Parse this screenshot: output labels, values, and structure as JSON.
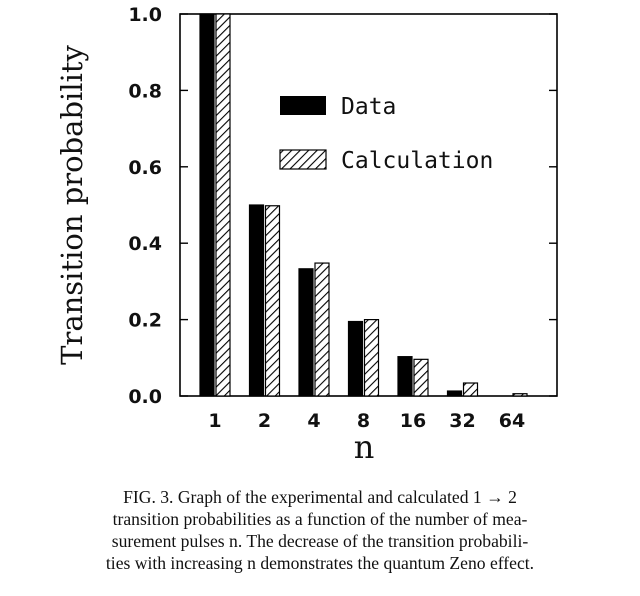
{
  "chart_data": {
    "type": "bar",
    "title": "",
    "xlabel": "n",
    "ylabel": "Transition probability",
    "categories": [
      "1",
      "2",
      "4",
      "8",
      "16",
      "32",
      "64"
    ],
    "series": [
      {
        "name": "Data",
        "values": [
          1.0,
          0.5,
          0.333,
          0.195,
          0.103,
          0.013,
          0.0
        ],
        "color": "#000000",
        "pattern": "solid"
      },
      {
        "name": "Calculation",
        "values": [
          1.0,
          0.498,
          0.348,
          0.2,
          0.096,
          0.034,
          0.006
        ],
        "color": "#000000",
        "pattern": "diagonal-hatch"
      }
    ],
    "ylim": [
      0,
      1.0
    ],
    "yticks": [
      "0.0",
      "0.2",
      "0.4",
      "0.6",
      "0.8",
      "1.0"
    ],
    "legend_position": "top-right",
    "grid": false
  },
  "caption": {
    "lines": [
      "FIG. 3.   Graph of the experimental and calculated 1 → 2",
      "transition probabilities as a function of the number of mea-",
      "surement pulses n.  The decrease of the transition probabili-",
      "ties with increasing n demonstrates the quantum Zeno effect."
    ]
  }
}
